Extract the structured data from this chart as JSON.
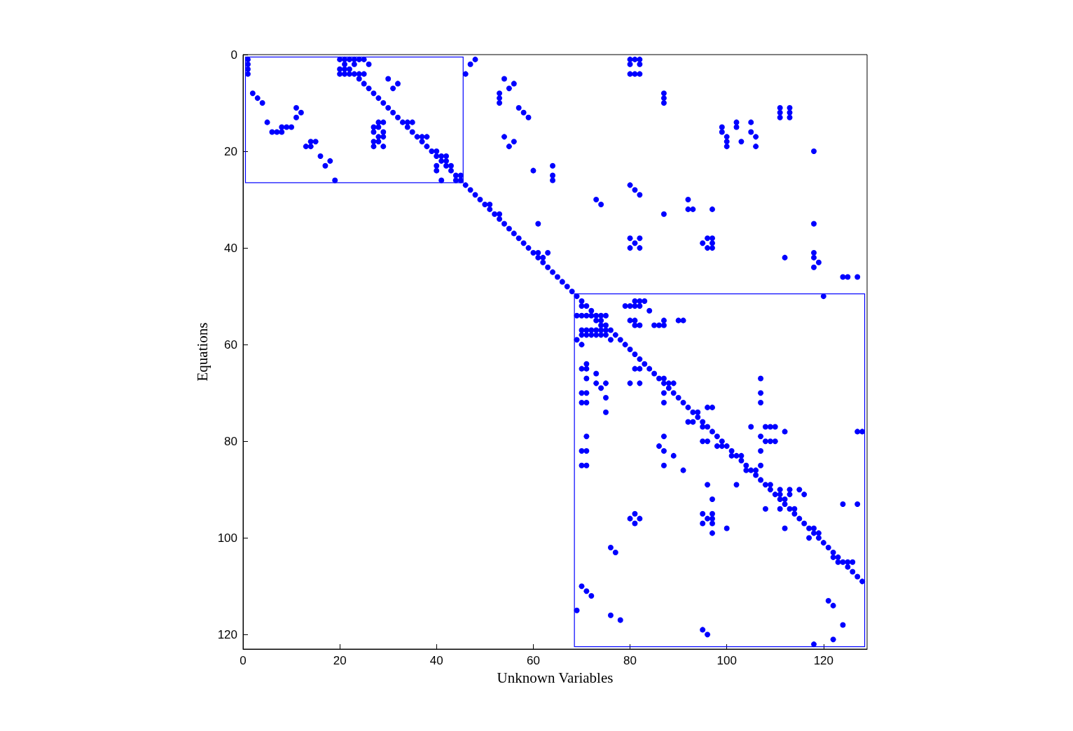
{
  "chart_data": {
    "type": "scatter",
    "xlabel": "Unknown Variables",
    "ylabel": "Equations",
    "xlim": [
      0,
      129
    ],
    "ylim": [
      123,
      0
    ],
    "xticks": [
      0,
      20,
      40,
      60,
      80,
      100,
      120
    ],
    "yticks": [
      0,
      20,
      40,
      60,
      80,
      100,
      120
    ],
    "marker": "circle",
    "series": [
      {
        "color": "#0000ff",
        "x": [
          1,
          1,
          1,
          1,
          2,
          3,
          4,
          5,
          6,
          7,
          8,
          8,
          9,
          10,
          11,
          12,
          11,
          13,
          14,
          14,
          15,
          16,
          17,
          18,
          19,
          20,
          21,
          22,
          23,
          24,
          25,
          21,
          23,
          26,
          20,
          21,
          22,
          20,
          21,
          22,
          23,
          24,
          25,
          24,
          25,
          26,
          27,
          28,
          29,
          30,
          31,
          32,
          33,
          34,
          35,
          34,
          35,
          36,
          37,
          38,
          37,
          38,
          39,
          40,
          40,
          41,
          42,
          41,
          42,
          40,
          42,
          43,
          40,
          43,
          41,
          44,
          45,
          44,
          45,
          30,
          32,
          31,
          28,
          29,
          27,
          28,
          27,
          29,
          28,
          29,
          27,
          28,
          27,
          29,
          46,
          47,
          48,
          46,
          47,
          48,
          49,
          50,
          51,
          51,
          52,
          53,
          53,
          54,
          55,
          56,
          57,
          58,
          59,
          60,
          61,
          63,
          61,
          62,
          62,
          63,
          64,
          65,
          66,
          67,
          68,
          69,
          70,
          70,
          71,
          72,
          54,
          56,
          55,
          53,
          53,
          53,
          57,
          58,
          59,
          54,
          56,
          55,
          60,
          64,
          64,
          64,
          73,
          74,
          80,
          81,
          82,
          87,
          61,
          80,
          82,
          81,
          80,
          82,
          80,
          81,
          82,
          80,
          82,
          80,
          81,
          82,
          87,
          87,
          87,
          111,
          111,
          111,
          113,
          113,
          113,
          99,
          99,
          100,
          100,
          100,
          102,
          102,
          103,
          105,
          105,
          106,
          106,
          118,
          92,
          92,
          93,
          97,
          118,
          96,
          97,
          95,
          97,
          96,
          97,
          112,
          118,
          118,
          119,
          118,
          124,
          125,
          127,
          120,
          81,
          82,
          83,
          79,
          80,
          81,
          82,
          84,
          69,
          70,
          71,
          72,
          73,
          74,
          75,
          73,
          74,
          80,
          81,
          87,
          90,
          91,
          74,
          75,
          81,
          82,
          85,
          86,
          87,
          70,
          71,
          72,
          73,
          74,
          75,
          76,
          70,
          71,
          72,
          73,
          74,
          75,
          77,
          69,
          76,
          78,
          70,
          79,
          80,
          81,
          82,
          71,
          83,
          70,
          71,
          81,
          82,
          84,
          73,
          85,
          71,
          86,
          87,
          107,
          73,
          75,
          80,
          82,
          87,
          88,
          89,
          74,
          88,
          70,
          71,
          87,
          89,
          107,
          75,
          90,
          70,
          71,
          87,
          91,
          107,
          92,
          96,
          97,
          75,
          93,
          94,
          94,
          92,
          93,
          95,
          95,
          96,
          105,
          108,
          109,
          110,
          97,
          112,
          127,
          128,
          71,
          87,
          98,
          107,
          95,
          96,
          99,
          108,
          109,
          110,
          86,
          98,
          99,
          100,
          70,
          71,
          87,
          101,
          107,
          89,
          101,
          102,
          103,
          103,
          70,
          71,
          87,
          104,
          107,
          91,
          104,
          105,
          106,
          106,
          107,
          96,
          102,
          108,
          109,
          109,
          111,
          113,
          115,
          110,
          111,
          113,
          116,
          97,
          111,
          112,
          112,
          124,
          127,
          108,
          111,
          113,
          114,
          81,
          95,
          97,
          114,
          80,
          82,
          96,
          97,
          115,
          81,
          95,
          97,
          116,
          100,
          112,
          117,
          118,
          97,
          118,
          119,
          117,
          119,
          120,
          121,
          76,
          77,
          122,
          122,
          123,
          123,
          124,
          125,
          126,
          125,
          126,
          127,
          128,
          70,
          71,
          72,
          121,
          122,
          69,
          76,
          78,
          124,
          95,
          96,
          122,
          118
        ],
        "values": [
          1,
          2,
          3,
          4,
          8,
          9,
          10,
          14,
          16,
          16,
          16,
          15,
          15,
          15,
          11,
          12,
          13,
          19,
          19,
          18,
          18,
          21,
          23,
          22,
          26,
          1,
          1,
          1,
          1,
          1,
          1,
          2,
          2,
          2,
          3,
          3,
          3,
          4,
          4,
          4,
          4,
          4,
          4,
          5,
          6,
          7,
          8,
          9,
          10,
          11,
          12,
          13,
          14,
          14,
          14,
          15,
          16,
          17,
          17,
          17,
          18,
          19,
          20,
          20,
          21,
          21,
          21,
          22,
          22,
          23,
          23,
          23,
          24,
          24,
          26,
          25,
          25,
          26,
          26,
          5,
          6,
          7,
          14,
          14,
          15,
          15,
          16,
          16,
          17,
          17,
          18,
          18,
          19,
          19,
          4,
          2,
          1,
          27,
          28,
          29,
          30,
          31,
          31,
          32,
          33,
          33,
          34,
          35,
          36,
          37,
          38,
          39,
          40,
          41,
          41,
          41,
          42,
          42,
          43,
          44,
          45,
          46,
          47,
          48,
          49,
          50,
          51,
          52,
          52,
          53,
          5,
          6,
          7,
          8,
          9,
          10,
          11,
          12,
          13,
          17,
          18,
          19,
          24,
          23,
          25,
          26,
          30,
          31,
          27,
          28,
          29,
          33,
          35,
          38,
          38,
          39,
          40,
          40,
          1,
          1,
          1,
          2,
          2,
          4,
          4,
          4,
          8,
          9,
          10,
          11,
          12,
          13,
          11,
          12,
          13,
          15,
          16,
          17,
          18,
          19,
          14,
          15,
          18,
          14,
          16,
          17,
          19,
          20,
          30,
          32,
          32,
          32,
          35,
          38,
          38,
          39,
          39,
          40,
          40,
          42,
          41,
          42,
          43,
          44,
          46,
          46,
          46,
          50,
          51,
          51,
          51,
          52,
          52,
          52,
          52,
          53,
          54,
          54,
          54,
          54,
          54,
          54,
          54,
          55,
          55,
          55,
          55,
          55,
          55,
          55,
          56,
          56,
          56,
          56,
          56,
          56,
          56,
          57,
          57,
          57,
          57,
          57,
          57,
          57,
          58,
          58,
          58,
          58,
          58,
          58,
          58,
          59,
          59,
          59,
          60,
          60,
          61,
          62,
          63,
          64,
          64,
          65,
          65,
          65,
          65,
          65,
          66,
          66,
          67,
          67,
          67,
          67,
          68,
          68,
          68,
          68,
          68,
          68,
          68,
          69,
          69,
          70,
          70,
          70,
          70,
          70,
          71,
          71,
          72,
          72,
          72,
          72,
          72,
          73,
          73,
          73,
          74,
          74,
          74,
          75,
          76,
          76,
          76,
          77,
          77,
          77,
          77,
          77,
          77,
          78,
          78,
          78,
          78,
          79,
          79,
          79,
          79,
          80,
          80,
          80,
          80,
          80,
          80,
          81,
          81,
          81,
          81,
          82,
          82,
          82,
          82,
          82,
          83,
          83,
          83,
          83,
          84,
          85,
          85,
          85,
          85,
          85,
          86,
          86,
          86,
          86,
          87,
          88,
          89,
          89,
          89,
          89,
          90,
          90,
          90,
          90,
          91,
          91,
          91,
          91,
          92,
          92,
          92,
          93,
          93,
          93,
          94,
          94,
          94,
          94,
          95,
          95,
          95,
          95,
          96,
          96,
          96,
          96,
          96,
          97,
          97,
          97,
          97,
          98,
          98,
          98,
          98,
          99,
          99,
          99,
          100,
          100,
          101,
          102,
          102,
          103,
          103,
          104,
          104,
          105,
          105,
          105,
          105,
          106,
          107,
          108,
          109,
          110,
          111,
          112,
          113,
          114,
          115,
          116,
          117,
          118,
          119,
          120,
          121,
          122
        ]
      }
    ]
  }
}
